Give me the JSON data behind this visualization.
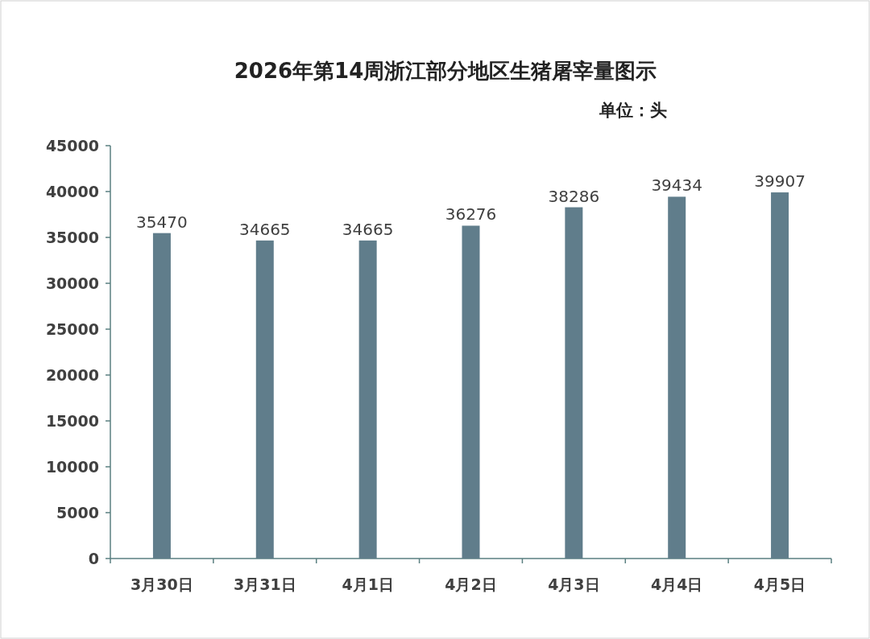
{
  "chart_data": {
    "type": "bar",
    "title": "2026年第14周浙江部分地区生猪屠宰量图示",
    "annotations": [
      "单位：头"
    ],
    "categories": [
      "3月30日",
      "3月31日",
      "4月1日",
      "4月2日",
      "4月3日",
      "4月4日",
      "4月5日"
    ],
    "values": [
      35470,
      34665,
      34665,
      36276,
      38286,
      39434,
      39907
    ],
    "color": "#607d8b",
    "ylim": [
      0,
      45000
    ],
    "yticks": [
      0,
      5000,
      10000,
      15000,
      20000,
      25000,
      30000,
      35000,
      40000,
      45000
    ],
    "data_labels": true
  }
}
